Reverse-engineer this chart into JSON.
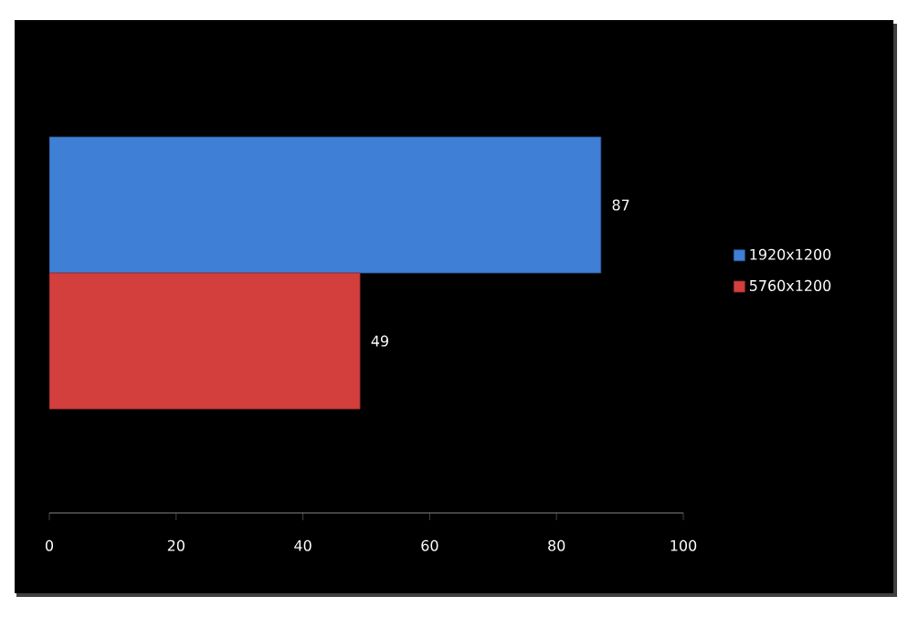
{
  "chart_data": {
    "type": "bar",
    "orientation": "horizontal",
    "categories": [
      null
    ],
    "series": [
      {
        "name": "1920x1200",
        "color": "#3f7fd6",
        "values": [
          87
        ]
      },
      {
        "name": "5760x1200",
        "color": "#d23f3d",
        "values": [
          49
        ]
      }
    ],
    "xlim": [
      0,
      100
    ],
    "xticks": [
      0,
      20,
      40,
      60,
      80,
      100
    ],
    "data_labels": true,
    "legend": "right"
  }
}
